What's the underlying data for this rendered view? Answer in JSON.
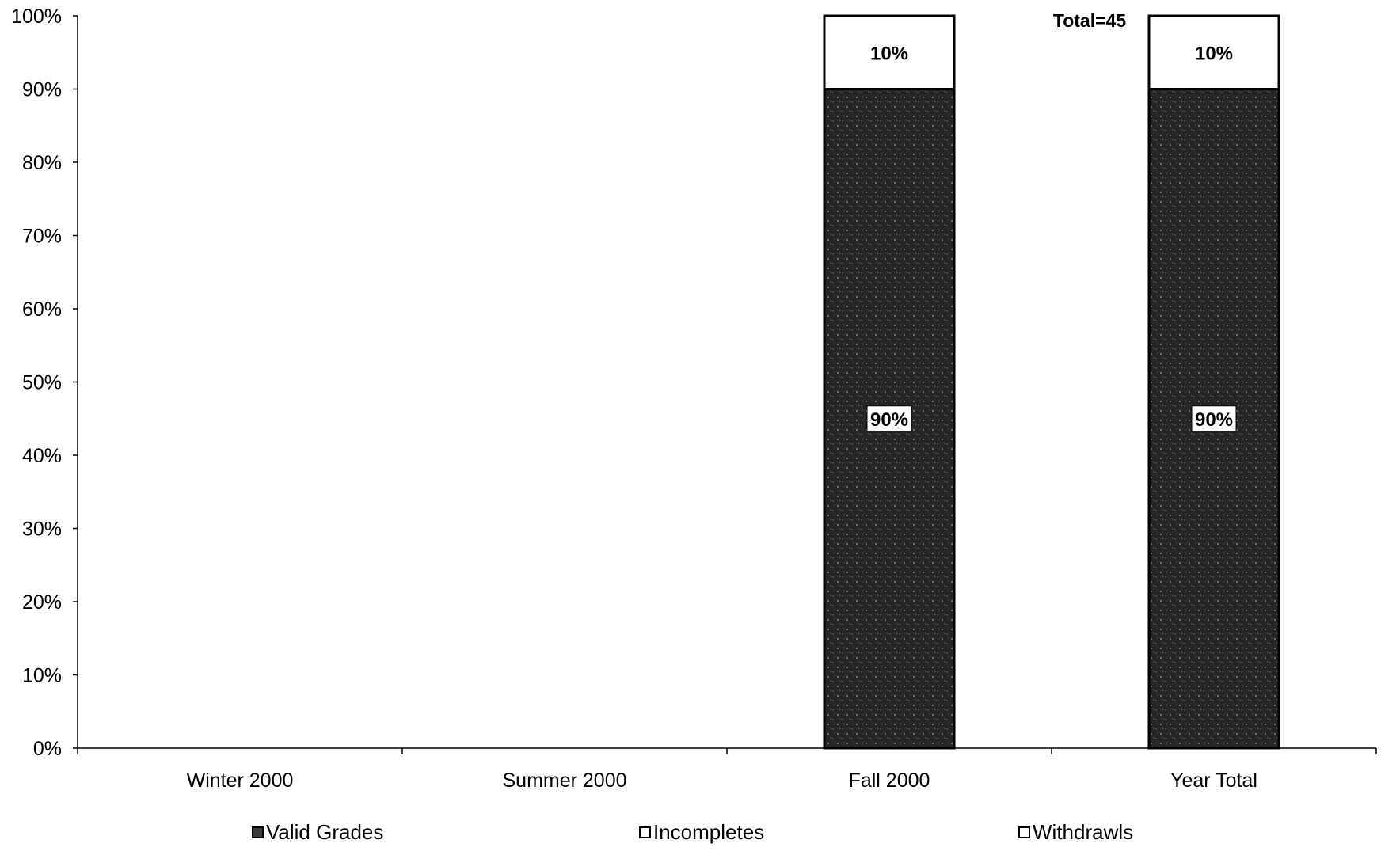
{
  "chart_data": {
    "type": "bar",
    "stacked": true,
    "categories": [
      "Winter 2000",
      "Summer 2000",
      "Fall 2000",
      "Year Total"
    ],
    "series": [
      {
        "name": "Valid Grades",
        "values": [
          null,
          null,
          90,
          90
        ],
        "labels": [
          "",
          "",
          "90%",
          "90%"
        ],
        "color": "#2a2a2a"
      },
      {
        "name": "Incompletes",
        "values": [
          null,
          null,
          10,
          10
        ],
        "labels": [
          "",
          "",
          "10%",
          "10%"
        ],
        "color": "#ffffff"
      },
      {
        "name": "Withdrawls",
        "values": [
          null,
          null,
          0,
          0
        ],
        "labels": [
          "",
          "",
          "",
          ""
        ],
        "color": "#ffffff"
      }
    ],
    "ylim": [
      0,
      100
    ],
    "yticks": [
      "0%",
      "10%",
      "20%",
      "30%",
      "40%",
      "50%",
      "60%",
      "70%",
      "80%",
      "90%",
      "100%"
    ],
    "annotation": "Total=45",
    "legend_position": "bottom",
    "grid": false
  }
}
